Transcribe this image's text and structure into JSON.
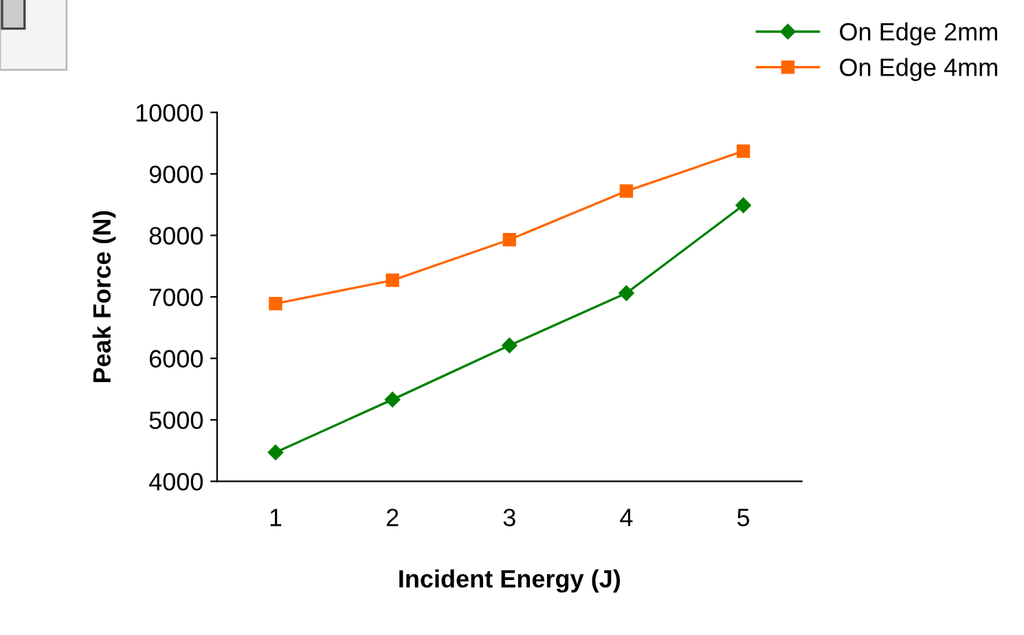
{
  "chart_data": {
    "type": "line",
    "xlabel": "Incident Energy (J)",
    "ylabel": "Peak Force (N)",
    "categories": [
      "1",
      "2",
      "3",
      "4",
      "5"
    ],
    "series": [
      {
        "name": "On Edge 2mm",
        "color": "#008000",
        "marker": "diamond",
        "values": [
          4470,
          5330,
          6210,
          7060,
          8490
        ]
      },
      {
        "name": "On Edge 4mm",
        "color": "#ff6600",
        "marker": "square",
        "values": [
          6890,
          7270,
          7930,
          8720,
          9370
        ]
      }
    ],
    "ylim": [
      4000,
      10000
    ],
    "yticks": [
      4000,
      5000,
      6000,
      7000,
      8000,
      9000,
      10000
    ],
    "grid": false,
    "legend": "top right"
  }
}
